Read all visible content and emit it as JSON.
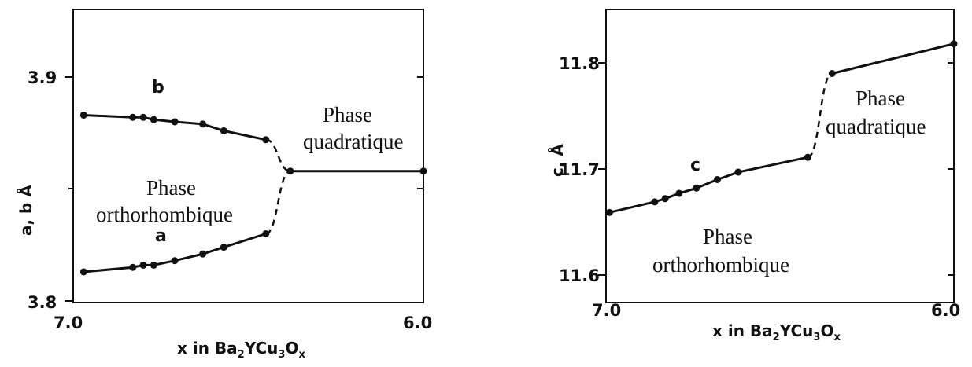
{
  "chart_data": [
    {
      "type": "line",
      "title": "",
      "xlabel_parts": [
        "x in Ba",
        "2",
        "YCu",
        "3",
        "O",
        "x"
      ],
      "ylabel": "a, b Å",
      "xlim": [
        7.0,
        6.0
      ],
      "ylim": [
        3.8,
        3.9
      ],
      "x_ticks": [
        "7.0",
        "6.0"
      ],
      "y_ticks": [
        "3.9",
        "3.8"
      ],
      "series": [
        {
          "name": "b",
          "x": [
            6.97,
            6.83,
            6.8,
            6.77,
            6.71,
            6.63,
            6.57,
            6.45
          ],
          "y": [
            3.883,
            3.882,
            3.882,
            3.881,
            3.88,
            3.879,
            3.876,
            3.872
          ],
          "dashed_to": [
            6.38,
            3.858
          ]
        },
        {
          "name": "a",
          "x": [
            6.97,
            6.83,
            6.8,
            6.77,
            6.71,
            6.63,
            6.57,
            6.45
          ],
          "y": [
            3.813,
            3.815,
            3.816,
            3.816,
            3.818,
            3.821,
            3.824,
            3.83
          ],
          "dashed_to": [
            6.38,
            3.858
          ]
        },
        {
          "name": "",
          "x": [
            6.38,
            6.0
          ],
          "y": [
            3.858,
            3.858
          ]
        }
      ],
      "annotations": [
        "Phase",
        "quadratique",
        "Phase",
        "orthorhombique"
      ]
    },
    {
      "type": "line",
      "title": "",
      "xlabel_parts": [
        "x in Ba",
        "2",
        "YCu",
        "3",
        "O",
        "x"
      ],
      "ylabel": "c, Å",
      "xlim": [
        7.0,
        6.0
      ],
      "ylim": [
        11.6,
        11.8
      ],
      "x_ticks": [
        "7.0",
        "6.0"
      ],
      "y_ticks": [
        "11.8",
        "11.7",
        "11.6"
      ],
      "series": [
        {
          "name": "c",
          "x": [
            6.99,
            6.86,
            6.83,
            6.79,
            6.74,
            6.68,
            6.62,
            6.42
          ],
          "y": [
            11.659,
            11.669,
            11.672,
            11.677,
            11.682,
            11.69,
            11.697,
            11.711
          ],
          "dashed_to": [
            6.35,
            11.79
          ]
        },
        {
          "name": "",
          "x": [
            6.35,
            6.0
          ],
          "y": [
            11.79,
            11.818
          ]
        }
      ],
      "annotations": [
        "Phase",
        "quadratique",
        "Phase",
        "orthorhombique"
      ]
    }
  ]
}
